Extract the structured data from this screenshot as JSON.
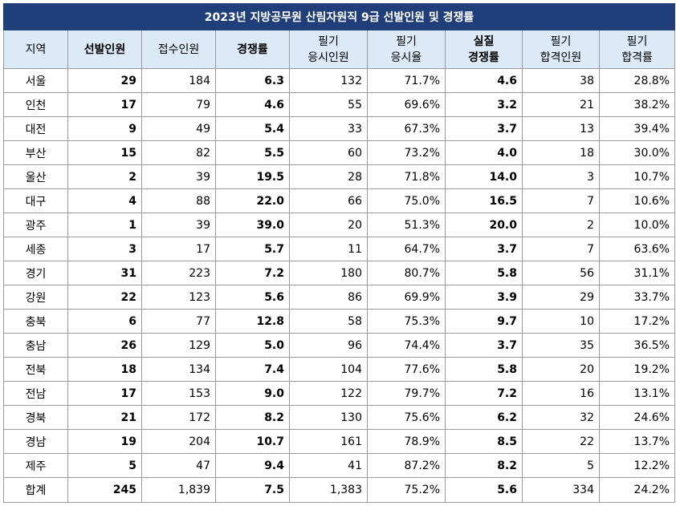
{
  "title": "2023년 지방공무원 산림자원직 9급 선발인원 및 경쟁률",
  "headers": [
    [
      "지역"
    ],
    [
      "선발인원"
    ],
    [
      "접수인원"
    ],
    [
      "경쟁률"
    ],
    [
      "필기",
      "응시인원"
    ],
    [
      "필기",
      "응시율"
    ],
    [
      "실질",
      "경쟁률"
    ],
    [
      "필기",
      "합격인원"
    ],
    [
      "필기",
      "합격률"
    ]
  ],
  "bold_columns": [
    1,
    3,
    6
  ],
  "rows": [
    [
      "서울",
      "29",
      "184",
      "6.3",
      "132",
      "71.7%",
      "4.6",
      "38",
      "28.8%"
    ],
    [
      "인천",
      "17",
      "79",
      "4.6",
      "55",
      "69.6%",
      "3.2",
      "21",
      "38.2%"
    ],
    [
      "대전",
      "9",
      "49",
      "5.4",
      "33",
      "67.3%",
      "3.7",
      "13",
      "39.4%"
    ],
    [
      "부산",
      "15",
      "82",
      "5.5",
      "60",
      "73.2%",
      "4.0",
      "18",
      "30.0%"
    ],
    [
      "울산",
      "2",
      "39",
      "19.5",
      "28",
      "71.8%",
      "14.0",
      "3",
      "10.7%"
    ],
    [
      "대구",
      "4",
      "88",
      "22.0",
      "66",
      "75.0%",
      "16.5",
      "7",
      "10.6%"
    ],
    [
      "광주",
      "1",
      "39",
      "39.0",
      "20",
      "51.3%",
      "20.0",
      "2",
      "10.0%"
    ],
    [
      "세종",
      "3",
      "17",
      "5.7",
      "11",
      "64.7%",
      "3.7",
      "7",
      "63.6%"
    ],
    [
      "경기",
      "31",
      "223",
      "7.2",
      "180",
      "80.7%",
      "5.8",
      "56",
      "31.1%"
    ],
    [
      "강원",
      "22",
      "123",
      "5.6",
      "86",
      "69.9%",
      "3.9",
      "29",
      "33.7%"
    ],
    [
      "충북",
      "6",
      "77",
      "12.8",
      "58",
      "75.3%",
      "9.7",
      "10",
      "17.2%"
    ],
    [
      "충남",
      "26",
      "129",
      "5.0",
      "96",
      "74.4%",
      "3.7",
      "35",
      "36.5%"
    ],
    [
      "전북",
      "18",
      "134",
      "7.4",
      "104",
      "77.6%",
      "5.8",
      "20",
      "19.2%"
    ],
    [
      "전남",
      "17",
      "153",
      "9.0",
      "122",
      "79.7%",
      "7.2",
      "16",
      "13.1%"
    ],
    [
      "경북",
      "21",
      "172",
      "8.2",
      "130",
      "75.6%",
      "6.2",
      "32",
      "24.6%"
    ],
    [
      "경남",
      "19",
      "204",
      "10.7",
      "161",
      "78.9%",
      "8.5",
      "22",
      "13.7%"
    ],
    [
      "제주",
      "5",
      "47",
      "9.4",
      "41",
      "87.2%",
      "8.2",
      "5",
      "12.2%"
    ],
    [
      "합계",
      "245",
      "1,839",
      "7.5",
      "1,383",
      "75.2%",
      "5.6",
      "334",
      "24.2%"
    ]
  ],
  "colors": {
    "title_bg": "#1f3e7a",
    "header_bg": "#dce9f6",
    "border": "#9a9a9a"
  }
}
